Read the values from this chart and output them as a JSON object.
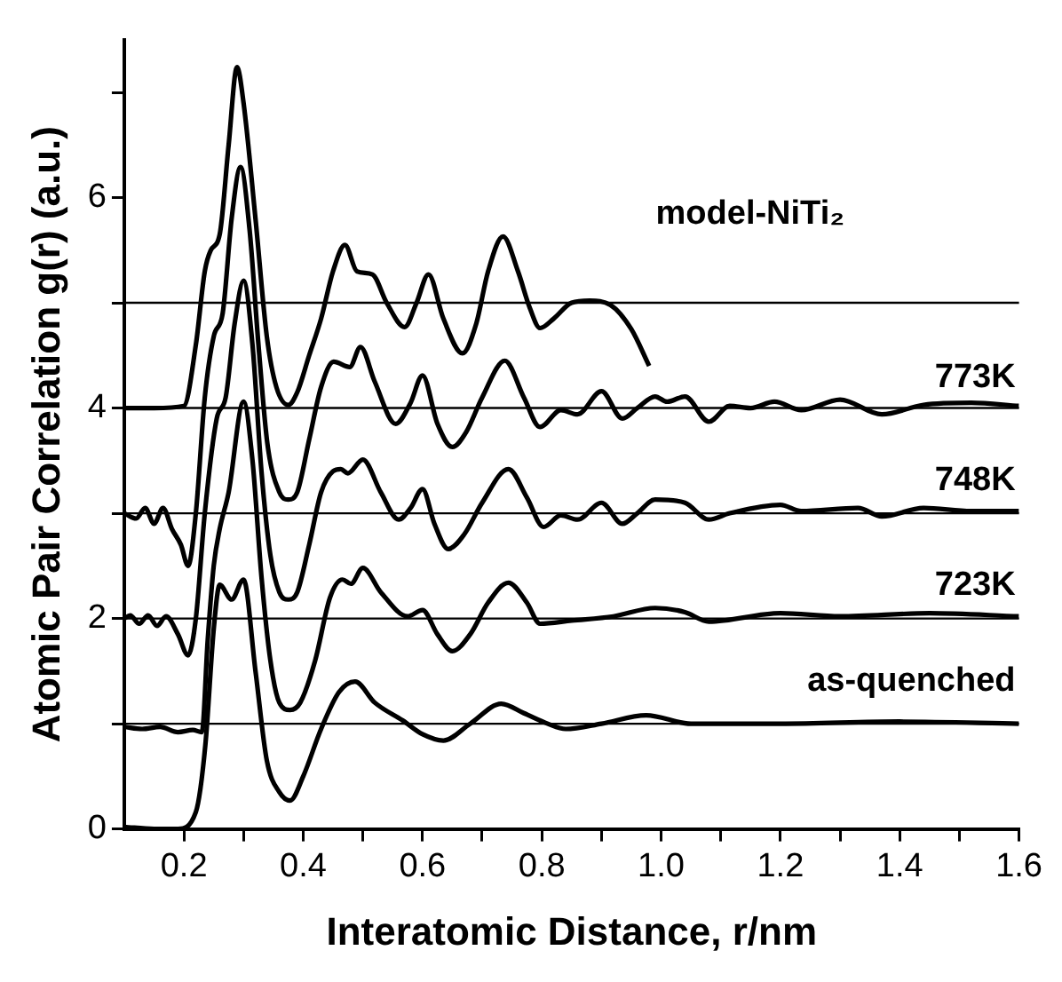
{
  "chart_data": {
    "type": "line",
    "xlabel": "Interatomic Distance, r/nm",
    "ylabel": "Atomic Pair Correlation g(r) (a.u.)",
    "xlim": [
      0.1,
      1.6
    ],
    "xticks": [
      0.2,
      {
        "value": 0.3,
        "label": null
      },
      0.4,
      {
        "value": 0.5,
        "label": null
      },
      0.6,
      {
        "value": 0.7,
        "label": null
      },
      0.8,
      {
        "value": 0.9,
        "label": null
      },
      {
        "value": 1,
        "label": "1.0"
      },
      {
        "value": 1.1,
        "label": null
      },
      1.2,
      {
        "value": 1.3,
        "label": null
      },
      1.4,
      {
        "value": 1.5,
        "label": null
      },
      1.6
    ],
    "ylim": [
      0,
      7.5
    ],
    "yticks": [
      0,
      {
        "value": 1,
        "label": null
      },
      2,
      {
        "value": 3,
        "label": null
      },
      4,
      {
        "value": 5,
        "label": null
      },
      6,
      {
        "value": 7,
        "label": null
      }
    ],
    "ref_lines": [
      {
        "axis": "y",
        "value": 1,
        "color": "#000000"
      },
      {
        "axis": "y",
        "value": 2,
        "color": "#000000"
      },
      {
        "axis": "y",
        "value": 3,
        "color": "#000000"
      },
      {
        "axis": "y",
        "value": 4,
        "color": "#000000"
      },
      {
        "axis": "y",
        "value": 5,
        "color": "#000000"
      }
    ],
    "series": [
      {
        "name": "model-NiTi₂",
        "color": "#000000",
        "x": [
          0.1,
          0.15,
          0.2,
          0.22,
          0.235,
          0.245,
          0.26,
          0.275,
          0.289,
          0.3,
          0.32,
          0.339,
          0.355,
          0.375,
          0.39,
          0.41,
          0.43,
          0.45,
          0.47,
          0.49,
          0.516,
          0.54,
          0.57,
          0.59,
          0.61,
          0.635,
          0.667,
          0.69,
          0.71,
          0.735,
          0.76,
          0.78,
          0.797,
          0.82,
          0.85,
          0.88,
          0.915,
          0.95,
          0.98
        ],
        "values": [
          4.0,
          4.0,
          4.02,
          4.6,
          5.3,
          5.5,
          5.65,
          6.5,
          7.24,
          6.9,
          5.8,
          4.68,
          4.2,
          4.03,
          4.15,
          4.5,
          4.85,
          5.3,
          5.55,
          5.3,
          5.27,
          5.0,
          4.77,
          5.0,
          5.27,
          4.85,
          4.52,
          4.8,
          5.3,
          5.63,
          5.3,
          4.95,
          4.76,
          4.85,
          5.0,
          5.02,
          4.98,
          4.75,
          4.4
        ]
      },
      {
        "name": "773K",
        "color": "#000000",
        "x": [
          0.1,
          0.12,
          0.135,
          0.15,
          0.165,
          0.18,
          0.195,
          0.207,
          0.22,
          0.235,
          0.25,
          0.265,
          0.28,
          0.295,
          0.31,
          0.325,
          0.34,
          0.36,
          0.375,
          0.39,
          0.41,
          0.43,
          0.451,
          0.478,
          0.496,
          0.52,
          0.555,
          0.58,
          0.6,
          0.625,
          0.65,
          0.673,
          0.7,
          0.738,
          0.77,
          0.797,
          0.832,
          0.86,
          0.9,
          0.935,
          0.96,
          0.99,
          1.01,
          1.04,
          1.08,
          1.115,
          1.15,
          1.19,
          1.235,
          1.3,
          1.37,
          1.44,
          1.52,
          1.6
        ],
        "values": [
          3.0,
          2.95,
          3.05,
          2.9,
          3.05,
          2.85,
          2.7,
          2.5,
          3.0,
          4.1,
          4.68,
          4.9,
          5.8,
          6.29,
          5.7,
          4.6,
          3.66,
          3.2,
          3.13,
          3.2,
          3.7,
          4.2,
          4.44,
          4.39,
          4.58,
          4.25,
          3.85,
          4.05,
          4.31,
          3.85,
          3.63,
          3.77,
          4.1,
          4.45,
          4.1,
          3.82,
          3.98,
          3.94,
          4.16,
          3.9,
          4.0,
          4.11,
          4.06,
          4.11,
          3.87,
          4.02,
          4.0,
          4.06,
          3.98,
          4.08,
          3.94,
          4.03,
          4.05,
          4.02
        ]
      },
      {
        "name": "748K",
        "color": "#000000",
        "x": [
          0.1,
          0.11,
          0.125,
          0.14,
          0.155,
          0.17,
          0.19,
          0.207,
          0.22,
          0.235,
          0.255,
          0.27,
          0.285,
          0.3,
          0.315,
          0.33,
          0.345,
          0.36,
          0.375,
          0.39,
          0.41,
          0.43,
          0.45,
          0.463,
          0.475,
          0.5,
          0.53,
          0.56,
          0.58,
          0.6,
          0.62,
          0.643,
          0.67,
          0.7,
          0.744,
          0.775,
          0.803,
          0.832,
          0.86,
          0.9,
          0.935,
          0.96,
          0.99,
          1.04,
          1.08,
          1.115,
          1.2,
          1.235,
          1.33,
          1.37,
          1.44,
          1.52,
          1.6
        ],
        "values": [
          2.0,
          2.03,
          1.95,
          2.03,
          1.93,
          2.02,
          1.85,
          1.65,
          2.0,
          3.0,
          3.9,
          4.1,
          4.8,
          5.21,
          4.6,
          3.4,
          2.6,
          2.25,
          2.18,
          2.25,
          2.7,
          3.2,
          3.4,
          3.42,
          3.38,
          3.51,
          3.2,
          2.94,
          3.05,
          3.23,
          2.9,
          2.66,
          2.8,
          3.1,
          3.42,
          3.15,
          2.87,
          2.98,
          2.94,
          3.1,
          2.9,
          3.0,
          3.13,
          3.1,
          2.94,
          3.0,
          3.08,
          3.02,
          3.05,
          2.97,
          3.05,
          3.02,
          3.02
        ]
      },
      {
        "name": "723K",
        "color": "#000000",
        "x": [
          0.1,
          0.13,
          0.16,
          0.19,
          0.215,
          0.23,
          0.24,
          0.25,
          0.26,
          0.275,
          0.3,
          0.315,
          0.33,
          0.345,
          0.36,
          0.378,
          0.395,
          0.42,
          0.445,
          0.466,
          0.48,
          0.5,
          0.53,
          0.575,
          0.6,
          0.625,
          0.65,
          0.68,
          0.71,
          0.744,
          0.775,
          0.797,
          0.85,
          0.92,
          0.99,
          1.04,
          1.08,
          1.2,
          1.3,
          1.45,
          1.6
        ],
        "values": [
          0.97,
          0.95,
          0.97,
          0.92,
          0.94,
          0.92,
          1.8,
          2.5,
          2.85,
          3.2,
          4.06,
          3.5,
          2.4,
          1.6,
          1.2,
          1.13,
          1.2,
          1.6,
          2.2,
          2.37,
          2.33,
          2.48,
          2.25,
          2.02,
          2.08,
          1.85,
          1.69,
          1.85,
          2.15,
          2.34,
          2.15,
          1.95,
          1.98,
          2.02,
          2.1,
          2.06,
          1.97,
          2.05,
          2.02,
          2.05,
          2.02
        ]
      },
      {
        "name": "as-quenched",
        "color": "#000000",
        "x": [
          0.1,
          0.15,
          0.19,
          0.22,
          0.236,
          0.25,
          0.26,
          0.28,
          0.3,
          0.32,
          0.339,
          0.36,
          0.378,
          0.4,
          0.43,
          0.46,
          0.487,
          0.52,
          0.567,
          0.6,
          0.635,
          0.68,
          0.732,
          0.77,
          0.81,
          0.84,
          0.9,
          0.975,
          1.05,
          1.2,
          1.4,
          1.6
        ],
        "values": [
          0.02,
          0.0,
          0.0,
          0.16,
          0.8,
          1.9,
          2.32,
          2.18,
          2.37,
          1.5,
          0.65,
          0.35,
          0.27,
          0.5,
          0.95,
          1.3,
          1.4,
          1.2,
          1.03,
          0.9,
          0.84,
          1.0,
          1.19,
          1.1,
          1.0,
          0.95,
          1.0,
          1.08,
          1.0,
          1.0,
          1.02,
          1.0
        ]
      }
    ]
  }
}
